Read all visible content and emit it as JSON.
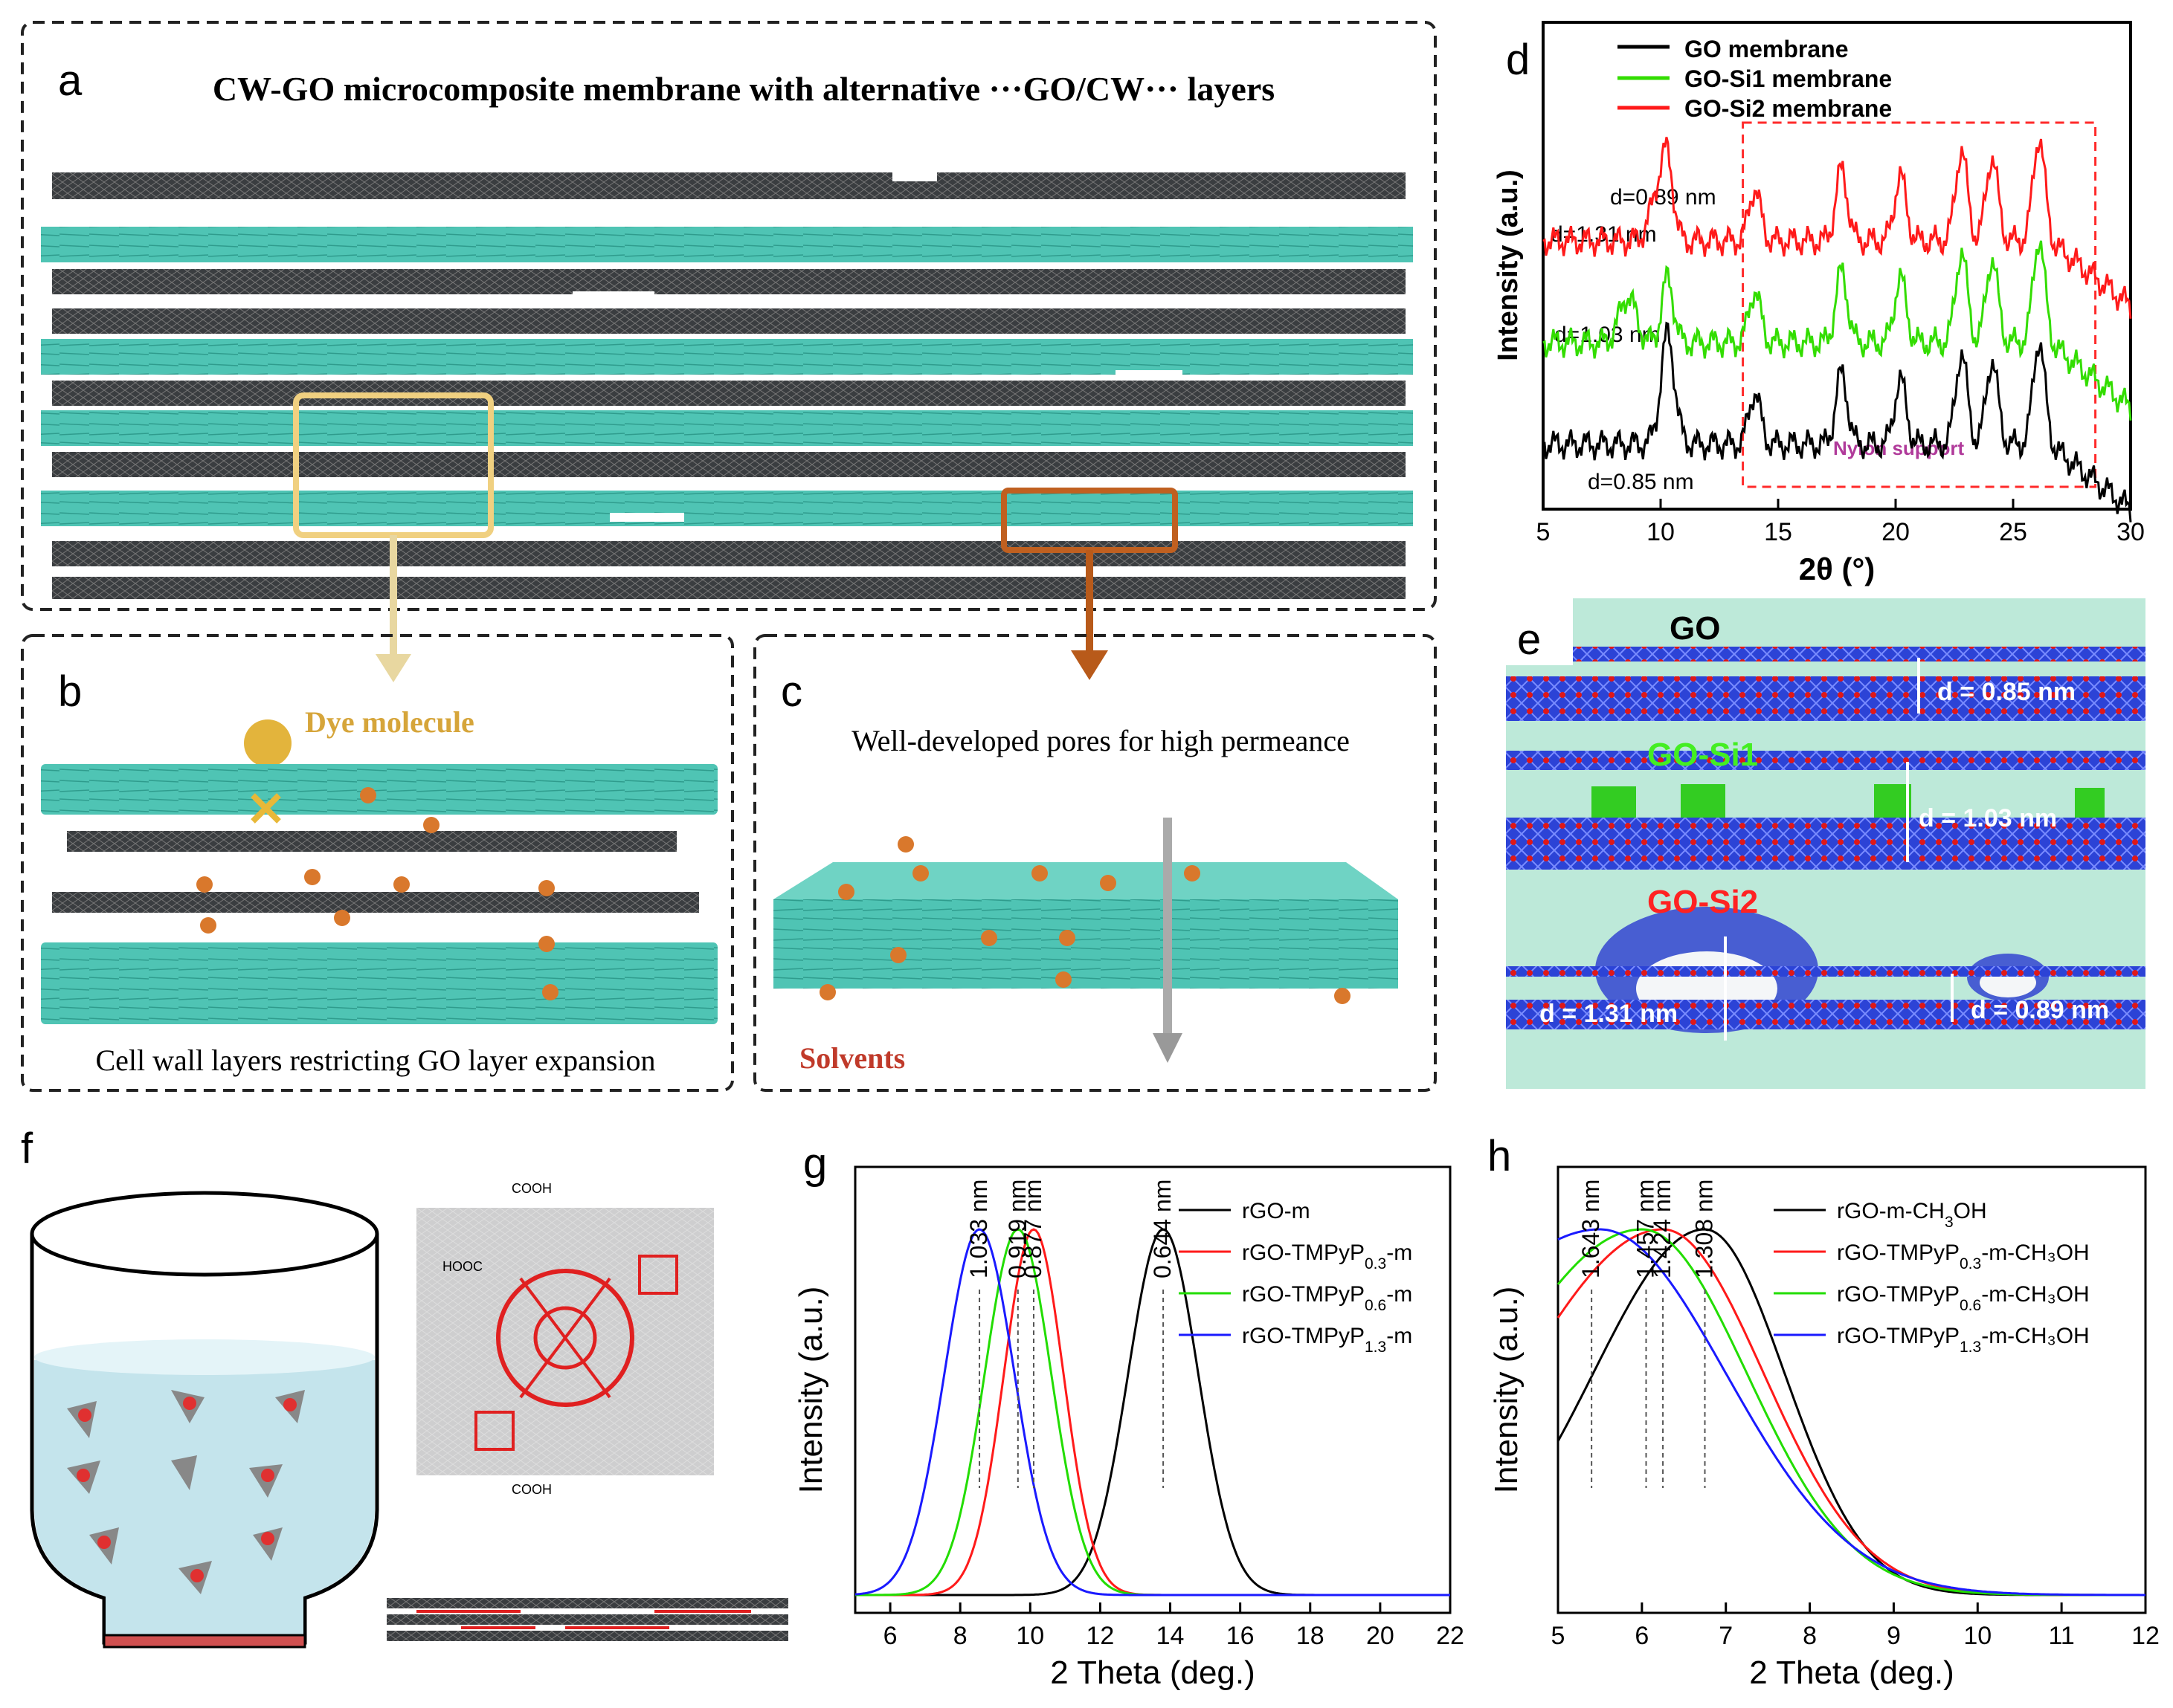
{
  "panels": {
    "a": {
      "letter": "a",
      "title": "CW-GO microcomposite membrane with alternative ···GO/CW··· layers"
    },
    "b": {
      "letter": "b",
      "dye_label": "Dye molecule",
      "caption": "Cell wall layers restricting GO layer expansion"
    },
    "c": {
      "letter": "c",
      "caption": "Well-developed pores for high permeance",
      "solvents_label": "Solvents"
    },
    "e": {
      "letter": "e",
      "go_label": "GO",
      "gosi1_label": "GO-Si1",
      "gosi2_label": "GO-Si2",
      "d085": "d = 0.85 nm",
      "d103": "d = 1.03 nm",
      "d131": "d = 1.31 nm",
      "d089": "d = 0.89 nm"
    },
    "f": {
      "letter": "f",
      "cooh_top": "COOH",
      "cooh_left": "HOOC",
      "cooh_bottom": "COOH"
    }
  },
  "chart_data": [
    {
      "id": "d",
      "letter": "d",
      "type": "line",
      "xlabel": "2θ (°)",
      "ylabel": "Intensity (a.u.)",
      "xlim": [
        5,
        30
      ],
      "xticks": [
        "5",
        "10",
        "15",
        "20",
        "25",
        "30"
      ],
      "legend_position": "top-left",
      "series": [
        {
          "name": "GO membrane",
          "color": "#000000"
        },
        {
          "name": "GO-Si1 membrane",
          "color": "#33dd00"
        },
        {
          "name": "GO-Si2 membrane",
          "color": "#ff1a1a"
        }
      ],
      "annotations": [
        "d=0.89 nm",
        "d=1.31 nm",
        "d=1.03 nm",
        "d=0.85 nm"
      ],
      "region_label": "Nylon support",
      "region_range": [
        13.5,
        28.5
      ]
    },
    {
      "id": "g",
      "letter": "g",
      "type": "line",
      "xlabel": "2 Theta (deg.)",
      "ylabel": "Intensity (a.u.)",
      "xlim": [
        5,
        22
      ],
      "xticks": [
        "6",
        "8",
        "10",
        "12",
        "14",
        "16",
        "18",
        "20",
        "22"
      ],
      "legend_position": "top-right",
      "series": [
        {
          "name": "rGO-m",
          "sub": "",
          "after": "",
          "color": "#000000",
          "peak": 13.8,
          "width": 1.0
        },
        {
          "name": "rGO-TMPyP",
          "sub": "0.3",
          "after": "-m",
          "color": "#ff1a1a",
          "peak": 10.1,
          "width": 0.85
        },
        {
          "name": "rGO-TMPyP",
          "sub": "0.6",
          "after": "-m",
          "color": "#22dd00",
          "peak": 9.65,
          "width": 0.95
        },
        {
          "name": "rGO-TMPyP",
          "sub": "1.3",
          "after": "-m",
          "color": "#1a1aff",
          "peak": 8.55,
          "width": 1.0
        }
      ],
      "peak_labels": [
        {
          "text": "1.033 nm",
          "x": 8.55
        },
        {
          "text": "0.919 nm",
          "x": 9.65
        },
        {
          "text": "0.877 nm",
          "x": 10.1
        },
        {
          "text": "0.644 nm",
          "x": 13.8
        }
      ]
    },
    {
      "id": "h",
      "letter": "h",
      "type": "line",
      "xlabel": "2 Theta (deg.)",
      "ylabel": "Intensity (a.u.)",
      "xlim": [
        5,
        12
      ],
      "xticks": [
        "5",
        "6",
        "7",
        "8",
        "9",
        "10",
        "11",
        "12"
      ],
      "legend_position": "top-right",
      "series": [
        {
          "name": "rGO-m-CH",
          "sub": "3",
          "after": "OH",
          "color": "#000000",
          "peak": 6.75,
          "width": 0.95
        },
        {
          "name": "rGO-TMPyP",
          "sub": "0.3",
          "after": "-m-CH₃OH",
          "color": "#ff1a1a",
          "peak": 6.25,
          "width": 1.2
        },
        {
          "name": "rGO-TMPyP",
          "sub": "0.6",
          "after": "-m-CH₃OH",
          "color": "#22dd00",
          "peak": 6.0,
          "width": 1.25
        },
        {
          "name": "rGO-TMPyP",
          "sub": "1.3",
          "after": "-m-CH₃OH",
          "color": "#1a1aff",
          "peak": 5.5,
          "width": 1.5
        }
      ],
      "peak_labels": [
        {
          "text": "1.643 nm",
          "x": 5.4
        },
        {
          "text": "1.457 nm",
          "x": 6.05
        },
        {
          "text": "1.424 nm",
          "x": 6.25
        },
        {
          "text": "1.308 nm",
          "x": 6.75
        }
      ]
    }
  ]
}
